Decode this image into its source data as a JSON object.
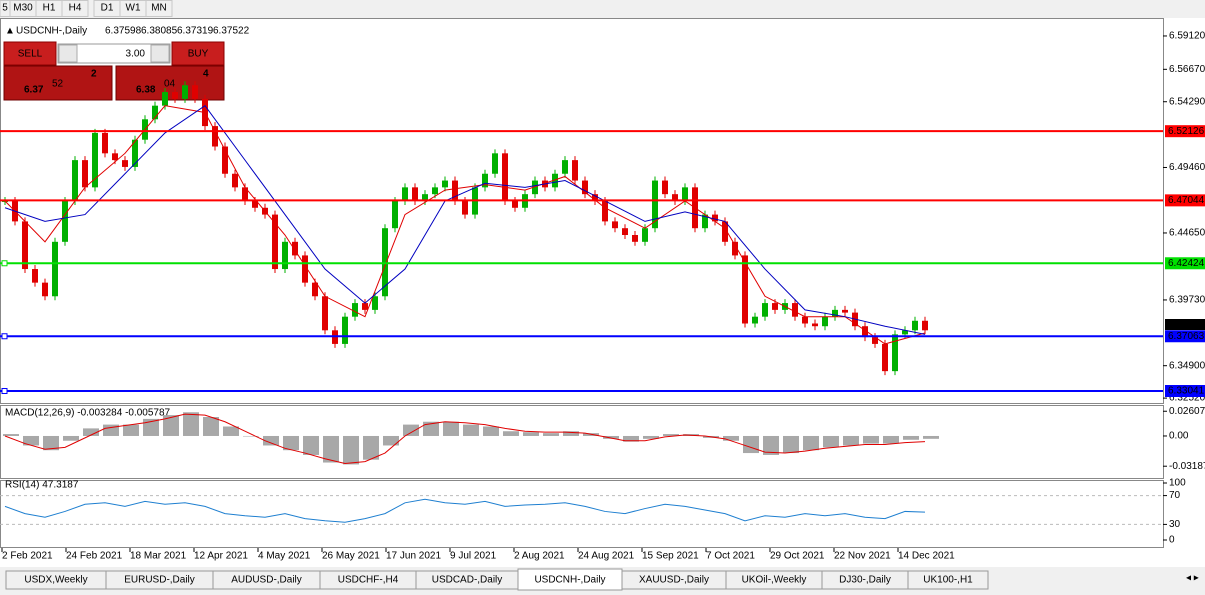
{
  "toolbar": [
    "5",
    "M30",
    "H1",
    "H4",
    "D1",
    "W1",
    "MN"
  ],
  "header": {
    "symbol": "USDCNH-,Daily",
    "open": "6.37598",
    "high": "6.38085",
    "low": "6.37319",
    "close": "6.37522"
  },
  "trade_panel": {
    "sell": "SELL",
    "buy": "BUY",
    "lots": "3.00",
    "bid": [
      "6.37",
      "52",
      "2"
    ],
    "ask": [
      "6.38",
      "04",
      "4"
    ]
  },
  "chart_data": [
    {
      "type": "candlestick",
      "ylim": [
        6.3216,
        6.6044
      ],
      "yticks": [
        {
          "value": 6.5912,
          "label": "6.59120"
        },
        {
          "value": 6.5667,
          "label": "6.56670"
        },
        {
          "value": 6.5429,
          "label": "6.54290"
        },
        {
          "value": 6.4946,
          "label": "6.49460"
        },
        {
          "value": 6.4465,
          "label": "6.44650"
        },
        {
          "value": 6.3973,
          "label": "6.39730"
        },
        {
          "value": 6.349,
          "label": "6.34900"
        },
        {
          "value": 6.3252,
          "label": "6.32520"
        }
      ],
      "levels": [
        {
          "value": 6.52126,
          "label": "6.52126",
          "color": "#ff0000"
        },
        {
          "value": 6.47044,
          "label": "6.47044",
          "color": "#ff0000"
        },
        {
          "value": 6.42424,
          "label": "6.42424",
          "color": "#00e000"
        },
        {
          "value": 6.37063,
          "label": "6.37063",
          "color": "#0000ff"
        },
        {
          "value": 6.33041,
          "label": "6.33041",
          "color": "#0000ff"
        }
      ],
      "current": {
        "value": 6.37522,
        "label": "6.37522"
      },
      "up_color": "#00b000",
      "down_color": "#e00000",
      "values": [
        6.47,
        6.455,
        6.42,
        6.41,
        6.4,
        6.44,
        6.47,
        6.5,
        6.48,
        6.52,
        6.505,
        6.5,
        6.495,
        6.515,
        6.53,
        6.54,
        6.55,
        6.545,
        6.555,
        6.545,
        6.525,
        6.51,
        6.49,
        6.48,
        6.47,
        6.465,
        6.46,
        6.42,
        6.44,
        6.43,
        6.41,
        6.4,
        6.375,
        6.365,
        6.385,
        6.395,
        6.39,
        6.4,
        6.45,
        6.47,
        6.48,
        6.47,
        6.475,
        6.48,
        6.485,
        6.47,
        6.46,
        6.48,
        6.49,
        6.505,
        6.47,
        6.465,
        6.475,
        6.485,
        6.48,
        6.49,
        6.5,
        6.485,
        6.475,
        6.47,
        6.455,
        6.45,
        6.445,
        6.44,
        6.45,
        6.485,
        6.475,
        6.47,
        6.48,
        6.45,
        6.46,
        6.455,
        6.44,
        6.43,
        6.38,
        6.385,
        6.395,
        6.39,
        6.395,
        6.385,
        6.38,
        6.378,
        6.385,
        6.39,
        6.388,
        6.378,
        6.37,
        6.365,
        6.345,
        6.372,
        6.375,
        6.382,
        6.375
      ],
      "ma_fast": {
        "color": "#e00000",
        "values": [
          6.47,
          6.44,
          6.48,
          6.505,
          6.54,
          6.535,
          6.48,
          6.445,
          6.4,
          6.385,
          6.46,
          6.478,
          6.482,
          6.478,
          6.488,
          6.465,
          6.45,
          6.47,
          6.45,
          6.4,
          6.385,
          6.385,
          6.365,
          6.373
        ]
      },
      "ma_slow": {
        "color": "#0000c0",
        "values": [
          6.465,
          6.455,
          6.46,
          6.49,
          6.52,
          6.54,
          6.5,
          6.46,
          6.42,
          6.395,
          6.42,
          6.47,
          6.483,
          6.48,
          6.485,
          6.47,
          6.455,
          6.462,
          6.455,
          6.42,
          6.39,
          6.385,
          6.378,
          6.372
        ]
      },
      "x_labels": [
        "2 Feb 2021",
        "24 Feb 2021",
        "18 Mar 2021",
        "12 Apr 2021",
        "4 May 2021",
        "26 May 2021",
        "17 Jun 2021",
        "9 Jul 2021",
        "2 Aug 2021",
        "24 Aug 2021",
        "15 Sep 2021",
        "7 Oct 2021",
        "29 Oct 2021",
        "22 Nov 2021",
        "14 Dec 2021"
      ]
    },
    {
      "type": "macd",
      "title": "MACD(12,26,9) -0.003284 -0.005787",
      "ylim": [
        -0.0443,
        0.0316
      ],
      "yticks": [
        {
          "value": 0.02607,
          "label": "0.02607"
        },
        {
          "value": 0,
          "label": "0.00"
        },
        {
          "value": -0.03187,
          "label": "-0.03187"
        }
      ],
      "histogram": {
        "color": "#a8a8a8",
        "values": [
          0.002,
          -0.01,
          -0.015,
          -0.005,
          0.008,
          0.012,
          0.012,
          0.018,
          0.022,
          0.025,
          0.02,
          0.01,
          0.0,
          -0.01,
          -0.015,
          -0.02,
          -0.028,
          -0.03,
          -0.025,
          -0.01,
          0.012,
          0.015,
          0.015,
          0.012,
          0.01,
          0.005,
          0.004,
          0.003,
          0.005,
          0.003,
          -0.003,
          -0.006,
          -0.003,
          0.002,
          0.002,
          -0.002,
          -0.005,
          -0.018,
          -0.02,
          -0.018,
          -0.015,
          -0.012,
          -0.01,
          -0.008,
          -0.008,
          -0.004,
          -0.003
        ]
      },
      "signal": {
        "color": "#e00000",
        "values": [
          0.0,
          -0.008,
          -0.014,
          -0.012,
          -0.002,
          0.008,
          0.011,
          0.014,
          0.018,
          0.023,
          0.022,
          0.015,
          0.005,
          -0.005,
          -0.013,
          -0.018,
          -0.024,
          -0.029,
          -0.027,
          -0.018,
          0.0,
          0.012,
          0.015,
          0.014,
          0.012,
          0.008,
          0.005,
          0.004,
          0.004,
          0.003,
          -0.001,
          -0.005,
          -0.005,
          -0.001,
          0.001,
          0.0,
          -0.003,
          -0.01,
          -0.017,
          -0.018,
          -0.016,
          -0.013,
          -0.011,
          -0.009,
          -0.009,
          -0.007,
          -0.006
        ]
      }
    },
    {
      "type": "rsi",
      "title": "RSI(14) 47.3187",
      "ylim": [
        0,
        100
      ],
      "yticks": [
        100,
        70,
        30,
        0
      ],
      "levels": [
        70,
        30
      ],
      "series": [
        {
          "color": "#1e7fd0",
          "values": [
            55,
            45,
            40,
            48,
            58,
            60,
            55,
            62,
            58,
            60,
            55,
            45,
            42,
            40,
            45,
            38,
            35,
            33,
            38,
            45,
            60,
            65,
            60,
            58,
            62,
            55,
            57,
            58,
            60,
            55,
            48,
            45,
            52,
            58,
            55,
            50,
            45,
            35,
            42,
            40,
            45,
            42,
            45,
            40,
            38,
            48,
            47
          ]
        }
      ]
    }
  ],
  "tabs": [
    "USDX,Weekly",
    "EURUSD-,Daily",
    "AUDUSD-,Daily",
    "USDCHF-,H4",
    "USDCAD-,Daily",
    "USDCNH-,Daily",
    "XAUUSD-,Daily",
    "UKOil-,Weekly",
    "DJ30-,Daily",
    "UK100-,H1"
  ],
  "active_tab": "USDCNH-,Daily"
}
